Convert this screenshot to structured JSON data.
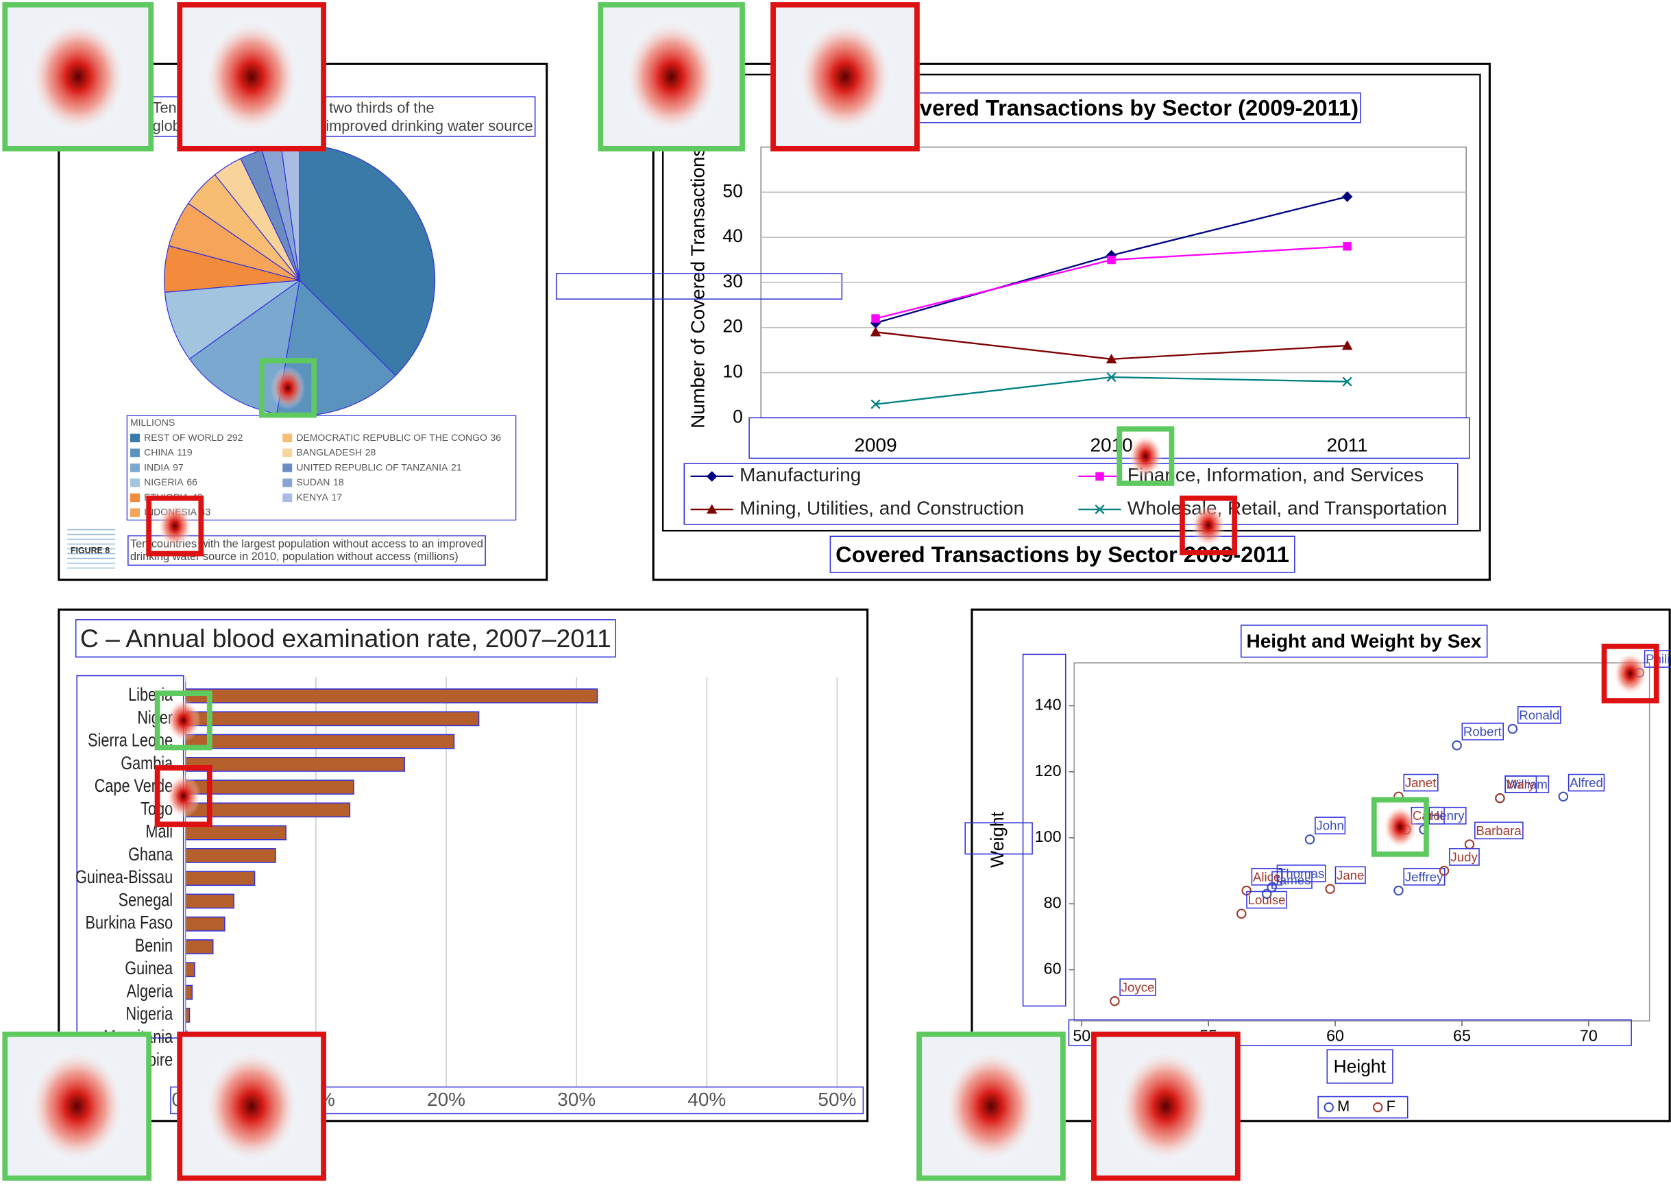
{
  "chart_data": [
    {
      "type": "pie",
      "title": "Ten countries are home to two thirds of the global population using unimproved drinking water source",
      "legend_title": "MILLIONS",
      "figure_label": "FIGURE 8",
      "caption": "Ten countries with the largest population without access to an improved drinking water source in 2010, population without access (millions)",
      "categories": [
        "REST OF WORLD",
        "CHINA",
        "INDIA",
        "NIGERIA",
        "ETHIOPIA",
        "INDONESIA",
        "DEMOCRATIC REPUBLIC OF THE CONGO",
        "BANGLADESH",
        "UNITED REPUBLIC OF TANZANIA",
        "SUDAN",
        "KENYA"
      ],
      "values": [
        292,
        119,
        97,
        66,
        43,
        43,
        36,
        28,
        21,
        18,
        17
      ],
      "colors": [
        "#3a7aa8",
        "#5b93bf",
        "#7aa8cf",
        "#a3c4de",
        "#f28c3c",
        "#f5a45a",
        "#f7bd72",
        "#f9d49a",
        "#6b8cc0",
        "#8aa5d4",
        "#a9bde3"
      ]
    },
    {
      "type": "line",
      "title": "Covered Transactions by Sector (2009-2011)",
      "caption": "Covered Transactions by Sector 2009-2011",
      "y_label": "Number of Covered Transactions",
      "categories": [
        "2009",
        "2010",
        "2011"
      ],
      "ylim": [
        0,
        60
      ],
      "yticks": [
        0,
        10,
        20,
        30,
        40,
        50
      ],
      "grid": true,
      "series": [
        {
          "name": "Manufacturing",
          "color": "#000080",
          "marker": "diamond",
          "values": [
            21,
            36,
            49
          ]
        },
        {
          "name": "Finance, Information, and Services",
          "color": "#ff00ff",
          "marker": "square",
          "values": [
            22,
            35,
            38
          ]
        },
        {
          "name": "Mining, Utilities, and Construction",
          "color": "#800000",
          "marker": "triangle",
          "values": [
            19,
            13,
            16
          ]
        },
        {
          "name": "Wholesale, Retail, and Transportation",
          "color": "#008080",
          "marker": "x",
          "values": [
            3,
            9,
            8
          ]
        }
      ]
    },
    {
      "type": "barh",
      "title": "C – Annual blood examination rate, 2007–2011",
      "categories": [
        "Liberia",
        "Niger",
        "Sierra Leone",
        "Gambia",
        "Cape Verde",
        "Togo",
        "Mali",
        "Ghana",
        "Guinea-Bissau",
        "Senegal",
        "Burkina Faso",
        "Benin",
        "Guinea",
        "Algeria",
        "Nigeria",
        "Mauritania",
        "Côte d'Ivoire"
      ],
      "values": [
        31.6,
        22.5,
        20.6,
        16.8,
        12.9,
        12.6,
        7.7,
        6.9,
        5.3,
        3.7,
        3.0,
        2.1,
        0.7,
        0.5,
        0.3,
        0.1,
        0.1
      ],
      "color": "#b5602c",
      "xlim": [
        0,
        52
      ],
      "xticks": [
        {
          "value": 0,
          "label": "0%"
        },
        {
          "value": 10,
          "label": "10%"
        },
        {
          "value": 20,
          "label": "20%"
        },
        {
          "value": 30,
          "label": "30%"
        },
        {
          "value": 40,
          "label": "40%"
        },
        {
          "value": 50,
          "label": "50%"
        }
      ],
      "grid": true
    },
    {
      "type": "scatter",
      "title": "Height and Weight by Sex",
      "x_label": "Height",
      "y_label": "Weight",
      "xlim": [
        49.7,
        72.4
      ],
      "xticks": [
        50,
        55,
        60,
        65,
        70
      ],
      "ylim": [
        44.5,
        153
      ],
      "yticks": [
        60,
        80,
        100,
        120,
        140
      ],
      "series": [
        {
          "name": "M",
          "color": "#3a4cb8",
          "labels": [
            "Alfred",
            "Henry",
            "James",
            "Jeffrey",
            "John",
            "Philip",
            "Robert",
            "Ronald",
            "Thomas",
            "William"
          ],
          "x": [
            69,
            63.5,
            57.3,
            62.5,
            59,
            72,
            64.8,
            67,
            57.5,
            66.5
          ],
          "values": [
            112.5,
            102.5,
            83,
            84,
            99.5,
            150,
            128,
            133,
            85,
            112
          ]
        },
        {
          "name": "F",
          "color": "#a0382c",
          "labels": [
            "Alice",
            "Barbara",
            "Carol",
            "Jane",
            "Janet",
            "Joyce",
            "Judy",
            "Louise",
            "Mary"
          ],
          "x": [
            56.5,
            65.3,
            62.8,
            59.8,
            62.5,
            51.3,
            64.3,
            56.3,
            66.5
          ],
          "values": [
            84,
            98,
            102.5,
            84.5,
            112.5,
            50.5,
            90,
            77,
            112
          ]
        }
      ]
    }
  ]
}
